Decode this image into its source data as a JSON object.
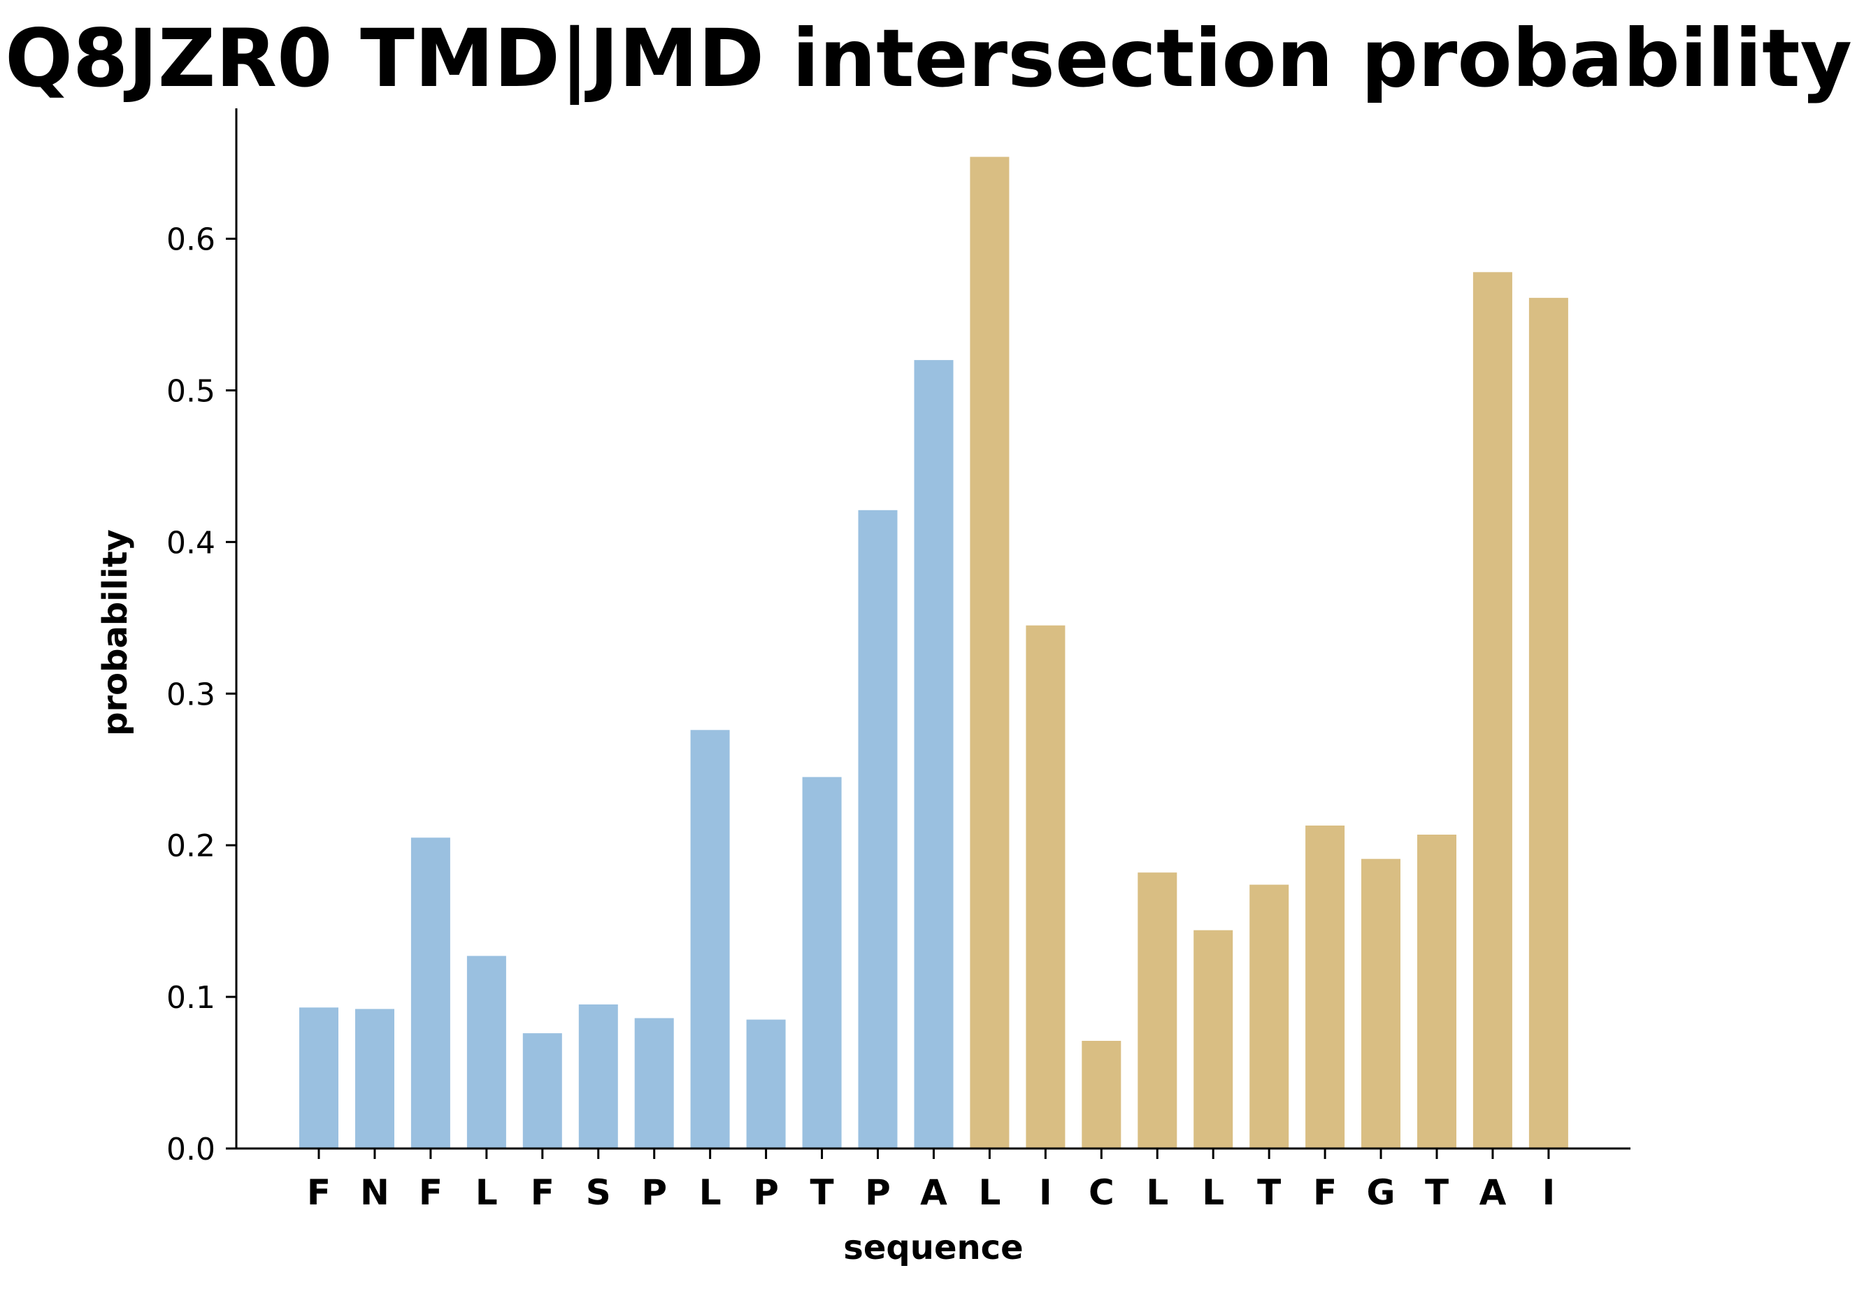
{
  "chart_data": {
    "type": "bar",
    "title": "Q8JZR0 TMD|JMD intersection probability",
    "xlabel": "sequence",
    "ylabel": "probability",
    "ylim": [
      0,
      0.686
    ],
    "yticks": [
      "0.0",
      "0.1",
      "0.2",
      "0.3",
      "0.4",
      "0.5",
      "0.6"
    ],
    "grid": false,
    "categories": [
      "F",
      "N",
      "F",
      "L",
      "F",
      "S",
      "P",
      "L",
      "P",
      "T",
      "P",
      "A",
      "L",
      "I",
      "C",
      "L",
      "L",
      "T",
      "F",
      "G",
      "T",
      "A",
      "I"
    ],
    "values": [
      0.093,
      0.092,
      0.205,
      0.127,
      0.076,
      0.095,
      0.086,
      0.276,
      0.085,
      0.245,
      0.421,
      0.52,
      0.654,
      0.345,
      0.071,
      0.182,
      0.144,
      0.174,
      0.213,
      0.191,
      0.207,
      0.578,
      0.561
    ],
    "segments": [
      {
        "start": 0,
        "end": 11,
        "color": "#9ac0e0"
      },
      {
        "start": 12,
        "end": 22,
        "color": "#d9be83"
      }
    ]
  }
}
